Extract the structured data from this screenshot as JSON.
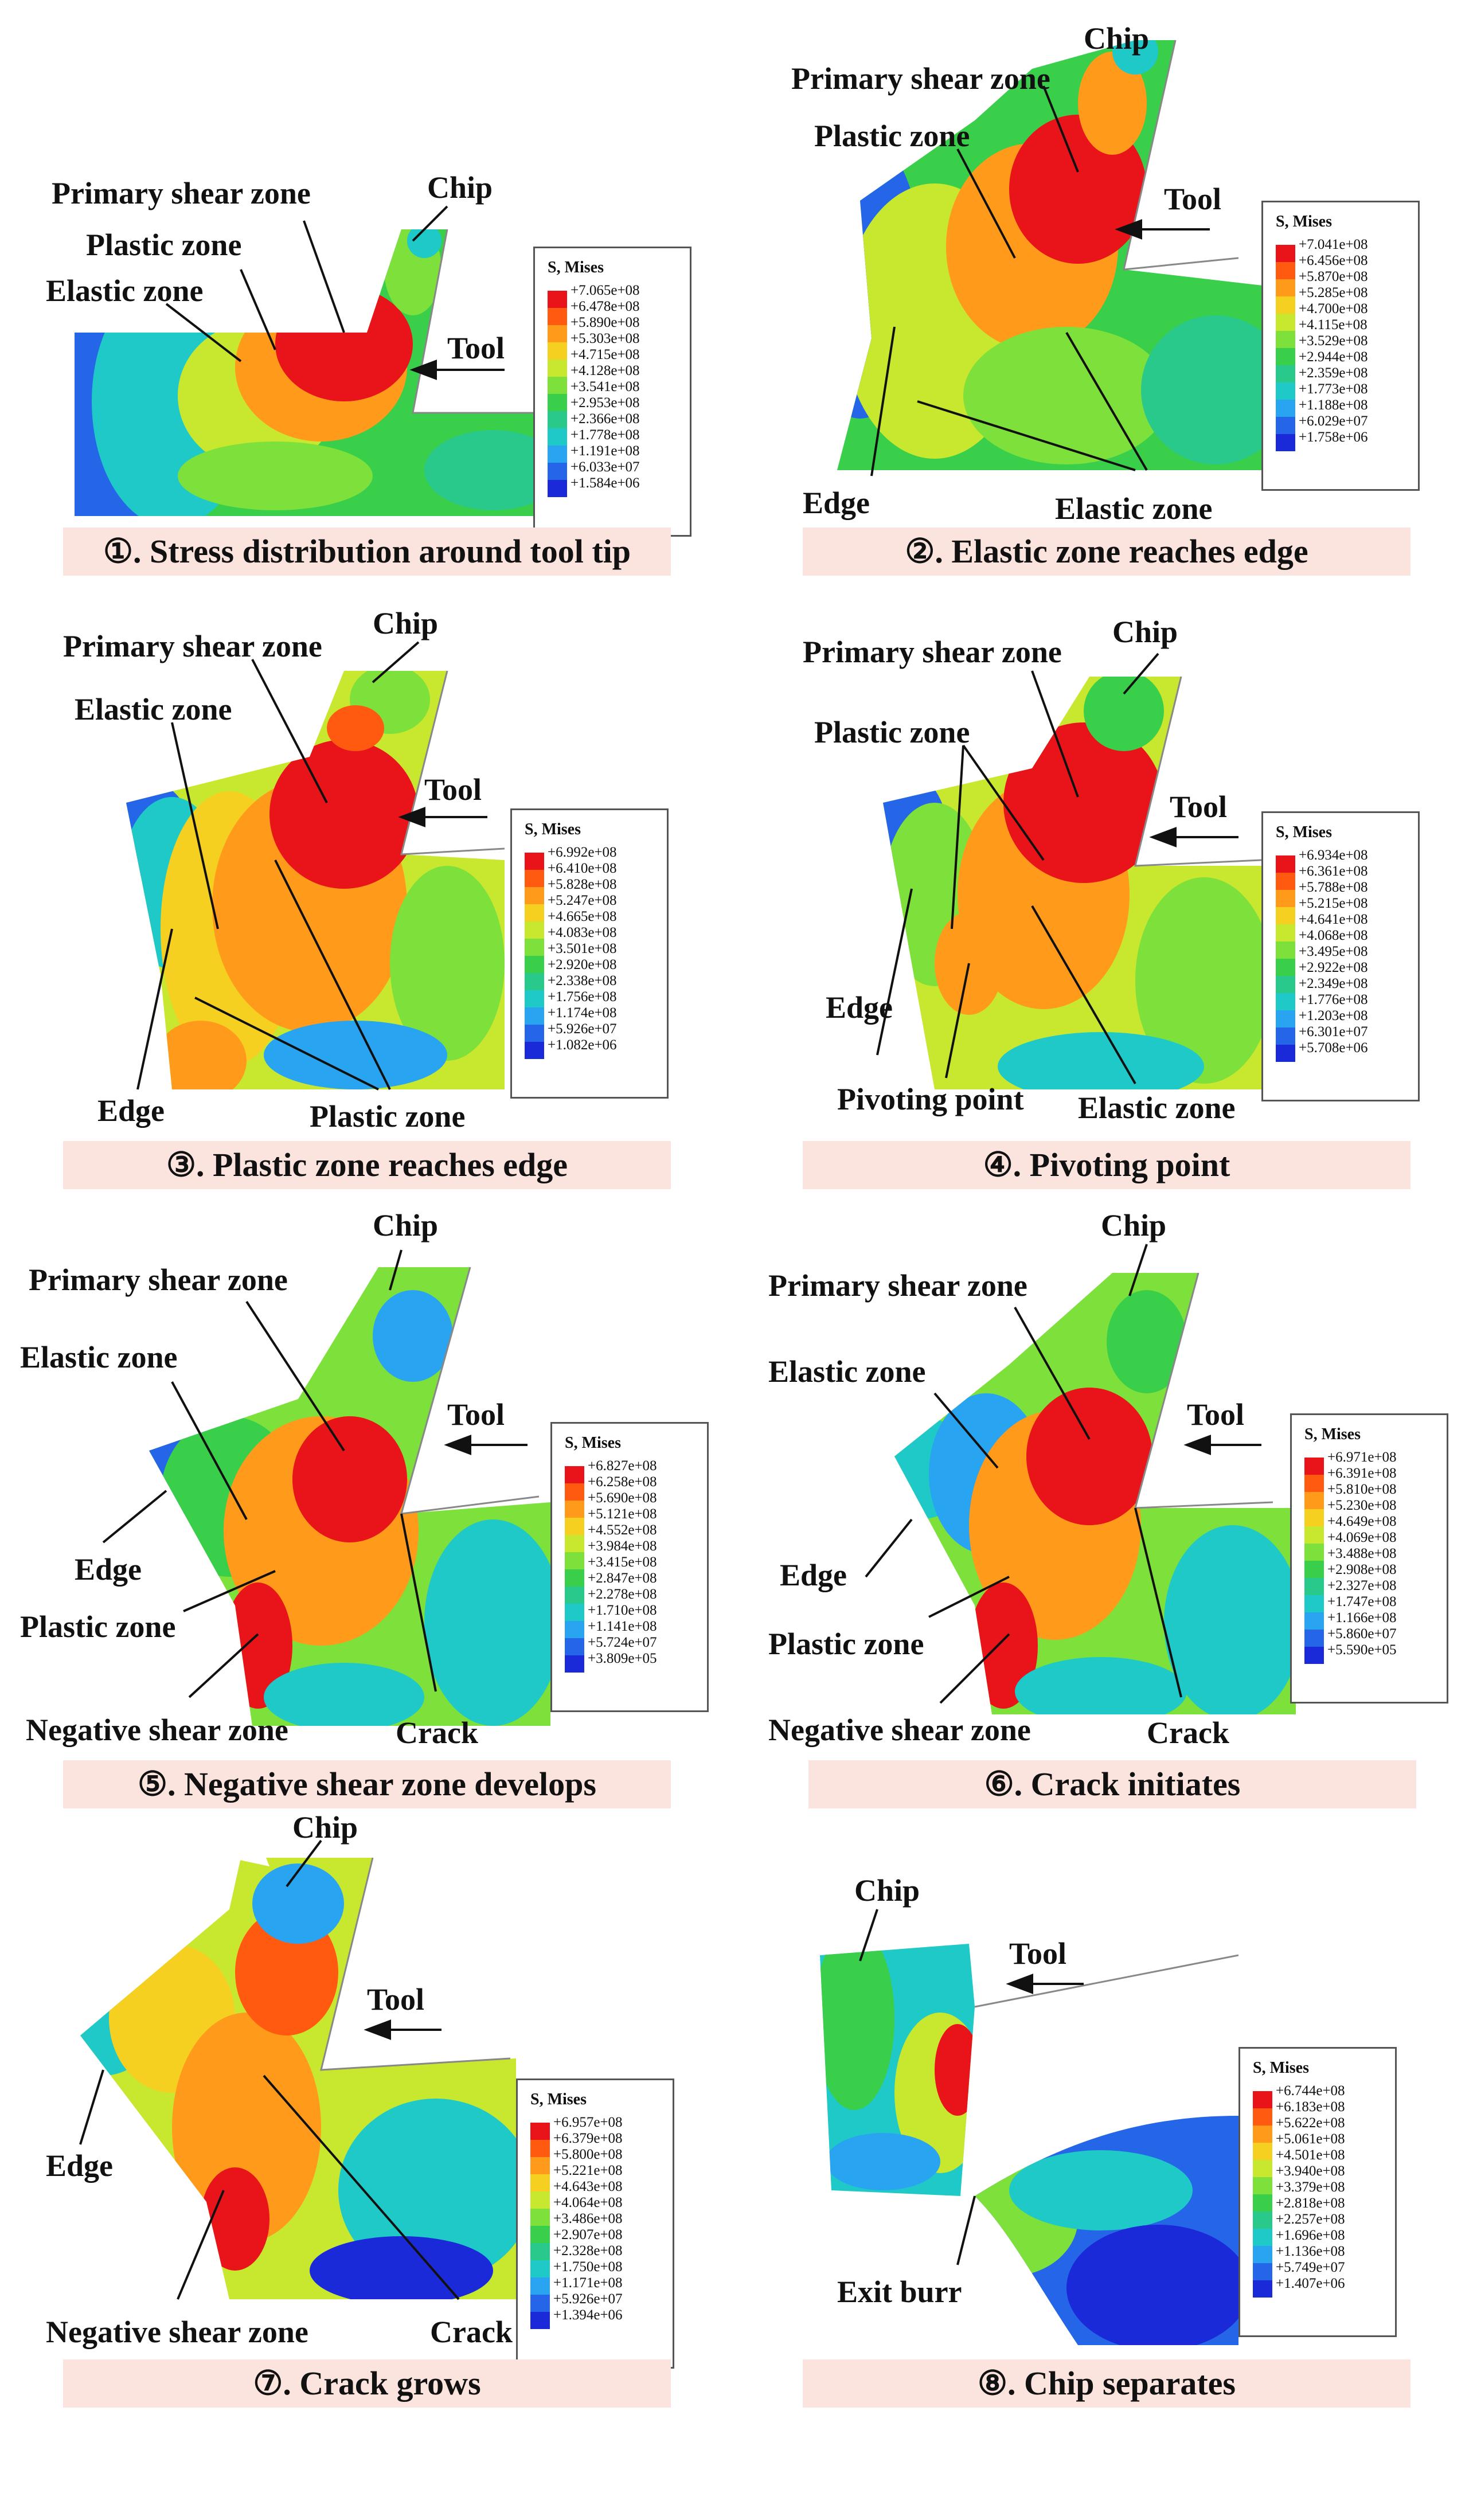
{
  "colormap": [
    "#e8141a",
    "#ff5a10",
    "#ff9a1a",
    "#f5d020",
    "#c8e830",
    "#7ee03a",
    "#3acf4a",
    "#28c98a",
    "#1ec9c7",
    "#29a4f0",
    "#2566e8",
    "#1b2ad8"
  ],
  "legend_title": "S, Mises",
  "panels": [
    {
      "caption": "①. Stress distribution around tool tip",
      "labels": {
        "chip": "Chip",
        "primary": "Primary shear zone",
        "plastic": "Plastic zone",
        "elastic": "Elastic zone",
        "tool": "Tool"
      },
      "legend": [
        "+7.065e+08",
        "+6.478e+08",
        "+5.890e+08",
        "+5.303e+08",
        "+4.715e+08",
        "+4.128e+08",
        "+3.541e+08",
        "+2.953e+08",
        "+2.366e+08",
        "+1.778e+08",
        "+1.191e+08",
        "+6.033e+07",
        "+1.584e+06"
      ]
    },
    {
      "caption": "②. Elastic zone reaches edge",
      "labels": {
        "chip": "Chip",
        "primary": "Primary shear zone",
        "plastic": "Plastic zone",
        "tool": "Tool",
        "edge": "Edge",
        "elastic": "Elastic zone"
      },
      "legend": [
        "+7.041e+08",
        "+6.456e+08",
        "+5.870e+08",
        "+5.285e+08",
        "+4.700e+08",
        "+4.115e+08",
        "+3.529e+08",
        "+2.944e+08",
        "+2.359e+08",
        "+1.773e+08",
        "+1.188e+08",
        "+6.029e+07",
        "+1.758e+06"
      ]
    },
    {
      "caption": "③. Plastic zone reaches edge",
      "labels": {
        "chip": "Chip",
        "primary": "Primary shear zone",
        "elastic": "Elastic zone",
        "tool": "Tool",
        "edge": "Edge",
        "plastic": "Plastic zone"
      },
      "legend": [
        "+6.992e+08",
        "+6.410e+08",
        "+5.828e+08",
        "+5.247e+08",
        "+4.665e+08",
        "+4.083e+08",
        "+3.501e+08",
        "+2.920e+08",
        "+2.338e+08",
        "+1.756e+08",
        "+1.174e+08",
        "+5.926e+07",
        "+1.082e+06"
      ]
    },
    {
      "caption": "④. Pivoting point",
      "labels": {
        "chip": "Chip",
        "primary": "Primary shear zone",
        "plastic": "Plastic zone",
        "tool": "Tool",
        "edge": "Edge",
        "pivot": "Pivoting point",
        "elastic": "Elastic zone"
      },
      "legend": [
        "+6.934e+08",
        "+6.361e+08",
        "+5.788e+08",
        "+5.215e+08",
        "+4.641e+08",
        "+4.068e+08",
        "+3.495e+08",
        "+2.922e+08",
        "+2.349e+08",
        "+1.776e+08",
        "+1.203e+08",
        "+6.301e+07",
        "+5.708e+06"
      ]
    },
    {
      "caption": "⑤. Negative shear zone develops",
      "labels": {
        "chip": "Chip",
        "primary": "Primary shear zone",
        "elastic": "Elastic zone",
        "tool": "Tool",
        "edge": "Edge",
        "plastic": "Plastic zone",
        "negative": "Negative shear zone",
        "crack": "Crack"
      },
      "legend": [
        "+6.827e+08",
        "+6.258e+08",
        "+5.690e+08",
        "+5.121e+08",
        "+4.552e+08",
        "+3.984e+08",
        "+3.415e+08",
        "+2.847e+08",
        "+2.278e+08",
        "+1.710e+08",
        "+1.141e+08",
        "+5.724e+07",
        "+3.809e+05"
      ]
    },
    {
      "caption": "⑥. Crack initiates",
      "labels": {
        "chip": "Chip",
        "primary": "Primary shear zone",
        "elastic": "Elastic zone",
        "tool": "Tool",
        "edge": "Edge",
        "plastic": "Plastic zone",
        "negative": "Negative shear zone",
        "crack": "Crack"
      },
      "legend": [
        "+6.971e+08",
        "+6.391e+08",
        "+5.810e+08",
        "+5.230e+08",
        "+4.649e+08",
        "+4.069e+08",
        "+3.488e+08",
        "+2.908e+08",
        "+2.327e+08",
        "+1.747e+08",
        "+1.166e+08",
        "+5.860e+07",
        "+5.590e+05"
      ]
    },
    {
      "caption": "⑦. Crack grows",
      "labels": {
        "chip": "Chip",
        "tool": "Tool",
        "edge": "Edge",
        "negative": "Negative shear zone",
        "crack": "Crack"
      },
      "legend": [
        "+6.957e+08",
        "+6.379e+08",
        "+5.800e+08",
        "+5.221e+08",
        "+4.643e+08",
        "+4.064e+08",
        "+3.486e+08",
        "+2.907e+08",
        "+2.328e+08",
        "+1.750e+08",
        "+1.171e+08",
        "+5.926e+07",
        "+1.394e+06"
      ]
    },
    {
      "caption": "⑧. Chip separates",
      "labels": {
        "chip": "Chip",
        "tool": "Tool",
        "burr": "Exit burr"
      },
      "legend": [
        "+6.744e+08",
        "+6.183e+08",
        "+5.622e+08",
        "+5.061e+08",
        "+4.501e+08",
        "+3.940e+08",
        "+3.379e+08",
        "+2.818e+08",
        "+2.257e+08",
        "+1.696e+08",
        "+1.136e+08",
        "+5.749e+07",
        "+1.407e+06"
      ]
    }
  ]
}
